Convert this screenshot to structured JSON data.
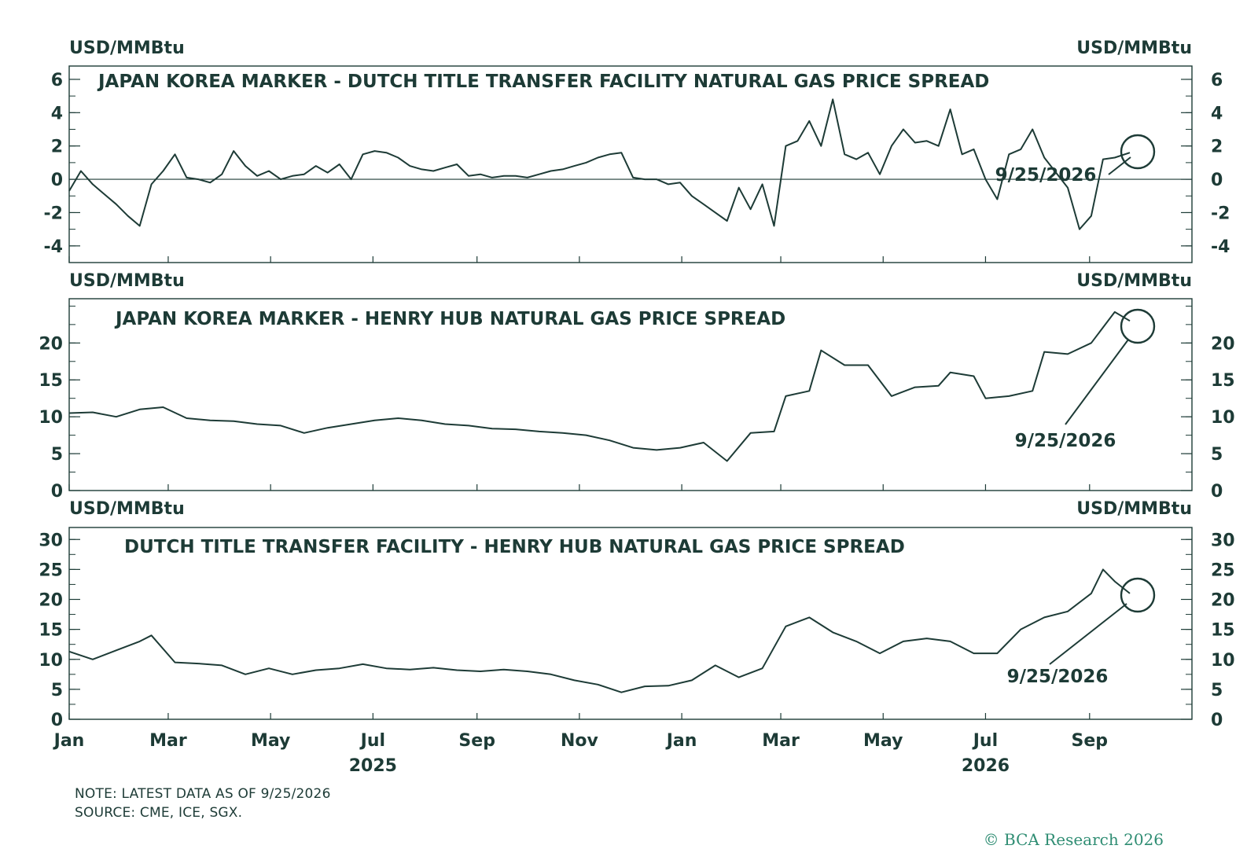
{
  "footer": {
    "note": "NOTE: LATEST DATA AS OF 9/25/2026",
    "source": "SOURCE: CME, ICE, SGX.",
    "copyright": "© BCA Research 2026"
  },
  "colors": {
    "line": "#1d3b36",
    "brand": "#2f8d73"
  },
  "x_axis": {
    "months": [
      {
        "label": "Jan",
        "date": "2025-01-01"
      },
      {
        "label": "Mar",
        "date": "2025-03-01"
      },
      {
        "label": "May",
        "date": "2025-05-01"
      },
      {
        "label": "Jul",
        "date": "2025-07-01"
      },
      {
        "label": "Sep",
        "date": "2025-09-01"
      },
      {
        "label": "Nov",
        "date": "2025-11-01"
      },
      {
        "label": "Jan",
        "date": "2026-01-01"
      },
      {
        "label": "Mar",
        "date": "2026-03-01"
      },
      {
        "label": "May",
        "date": "2026-05-01"
      },
      {
        "label": "Jul",
        "date": "2026-07-01"
      },
      {
        "label": "Sep",
        "date": "2026-09-01"
      }
    ],
    "years": [
      {
        "label": "2025",
        "date": "2025-07-01"
      },
      {
        "label": "2026",
        "date": "2026-07-01"
      }
    ],
    "range": [
      "2025-01-01",
      "2026-11-01"
    ]
  },
  "chart_data": [
    {
      "type": "line",
      "title": "JAPAN KOREA MARKER - DUTCH TITLE TRANSFER FACILITY NATURAL GAS PRICE SPREAD",
      "ylabel_left": "USD/MMBtu",
      "ylabel_right": "USD/MMBtu",
      "ylim": [
        -5,
        6.8
      ],
      "yticks": [
        -4,
        -2,
        0,
        2,
        4,
        6
      ],
      "zero_line": true,
      "annotation": {
        "text": "9/25/2026",
        "date": "2026-09-25",
        "value": 1.6
      },
      "series": [
        {
          "points": [
            [
              "2025-01-01",
              -0.7
            ],
            [
              "2025-01-08",
              0.5
            ],
            [
              "2025-01-15",
              -0.3
            ],
            [
              "2025-01-22",
              -0.9
            ],
            [
              "2025-01-29",
              -1.5
            ],
            [
              "2025-02-05",
              -2.2
            ],
            [
              "2025-02-12",
              -2.8
            ],
            [
              "2025-02-19",
              -0.3
            ],
            [
              "2025-02-26",
              0.5
            ],
            [
              "2025-03-05",
              1.5
            ],
            [
              "2025-03-12",
              0.1
            ],
            [
              "2025-03-19",
              0.0
            ],
            [
              "2025-03-26",
              -0.2
            ],
            [
              "2025-04-02",
              0.3
            ],
            [
              "2025-04-09",
              1.7
            ],
            [
              "2025-04-16",
              0.8
            ],
            [
              "2025-04-23",
              0.2
            ],
            [
              "2025-04-30",
              0.5
            ],
            [
              "2025-05-07",
              0.0
            ],
            [
              "2025-05-14",
              0.2
            ],
            [
              "2025-05-21",
              0.3
            ],
            [
              "2025-05-28",
              0.8
            ],
            [
              "2025-06-04",
              0.4
            ],
            [
              "2025-06-11",
              0.9
            ],
            [
              "2025-06-18",
              0.0
            ],
            [
              "2025-06-25",
              1.5
            ],
            [
              "2025-07-02",
              1.7
            ],
            [
              "2025-07-09",
              1.6
            ],
            [
              "2025-07-16",
              1.3
            ],
            [
              "2025-07-23",
              0.8
            ],
            [
              "2025-07-30",
              0.6
            ],
            [
              "2025-08-06",
              0.5
            ],
            [
              "2025-08-13",
              0.7
            ],
            [
              "2025-08-20",
              0.9
            ],
            [
              "2025-08-27",
              0.2
            ],
            [
              "2025-09-03",
              0.3
            ],
            [
              "2025-09-10",
              0.1
            ],
            [
              "2025-09-17",
              0.2
            ],
            [
              "2025-09-24",
              0.2
            ],
            [
              "2025-10-01",
              0.1
            ],
            [
              "2025-10-08",
              0.3
            ],
            [
              "2025-10-15",
              0.5
            ],
            [
              "2025-10-22",
              0.6
            ],
            [
              "2025-10-29",
              0.8
            ],
            [
              "2025-11-05",
              1.0
            ],
            [
              "2025-11-12",
              1.3
            ],
            [
              "2025-11-19",
              1.5
            ],
            [
              "2025-11-26",
              1.6
            ],
            [
              "2025-12-03",
              0.1
            ],
            [
              "2025-12-10",
              0.0
            ],
            [
              "2025-12-17",
              0.0
            ],
            [
              "2025-12-24",
              -0.3
            ],
            [
              "2025-12-31",
              -0.2
            ],
            [
              "2026-01-07",
              -1.0
            ],
            [
              "2026-01-14",
              -1.5
            ],
            [
              "2026-01-21",
              -2.0
            ],
            [
              "2026-01-28",
              -2.5
            ],
            [
              "2026-02-04",
              -0.5
            ],
            [
              "2026-02-11",
              -1.8
            ],
            [
              "2026-02-18",
              -0.3
            ],
            [
              "2026-02-25",
              -2.8
            ],
            [
              "2026-03-04",
              2.0
            ],
            [
              "2026-03-11",
              2.3
            ],
            [
              "2026-03-18",
              3.5
            ],
            [
              "2026-03-25",
              2.0
            ],
            [
              "2026-04-01",
              4.8
            ],
            [
              "2026-04-08",
              1.5
            ],
            [
              "2026-04-15",
              1.2
            ],
            [
              "2026-04-22",
              1.6
            ],
            [
              "2026-04-29",
              0.3
            ],
            [
              "2026-05-06",
              2.0
            ],
            [
              "2026-05-13",
              3.0
            ],
            [
              "2026-05-20",
              2.2
            ],
            [
              "2026-05-27",
              2.3
            ],
            [
              "2026-06-03",
              2.0
            ],
            [
              "2026-06-10",
              4.2
            ],
            [
              "2026-06-17",
              1.5
            ],
            [
              "2026-06-24",
              1.8
            ],
            [
              "2026-07-01",
              0.0
            ],
            [
              "2026-07-08",
              -1.2
            ],
            [
              "2026-07-15",
              1.5
            ],
            [
              "2026-07-22",
              1.8
            ],
            [
              "2026-07-29",
              3.0
            ],
            [
              "2026-08-05",
              1.3
            ],
            [
              "2026-08-12",
              0.4
            ],
            [
              "2026-08-19",
              -0.5
            ],
            [
              "2026-08-26",
              -3.0
            ],
            [
              "2026-09-02",
              -2.2
            ],
            [
              "2026-09-09",
              1.2
            ],
            [
              "2026-09-16",
              1.3
            ],
            [
              "2026-09-25",
              1.6
            ]
          ]
        }
      ]
    },
    {
      "type": "line",
      "title": "JAPAN KOREA MARKER - HENRY HUB NATURAL GAS PRICE SPREAD",
      "ylabel_left": "USD/MMBtu",
      "ylabel_right": "USD/MMBtu",
      "ylim": [
        0,
        26
      ],
      "yticks": [
        0,
        5,
        10,
        15,
        20
      ],
      "annotation": {
        "text": "9/25/2026",
        "date": "2026-09-25",
        "value": 23
      },
      "series": [
        {
          "points": [
            [
              "2025-01-01",
              10.5
            ],
            [
              "2025-01-15",
              10.6
            ],
            [
              "2025-01-29",
              10.0
            ],
            [
              "2025-02-12",
              11.0
            ],
            [
              "2025-02-26",
              11.3
            ],
            [
              "2025-03-12",
              9.8
            ],
            [
              "2025-03-26",
              9.5
            ],
            [
              "2025-04-09",
              9.4
            ],
            [
              "2025-04-23",
              9.0
            ],
            [
              "2025-05-07",
              8.8
            ],
            [
              "2025-05-21",
              7.8
            ],
            [
              "2025-06-04",
              8.5
            ],
            [
              "2025-06-18",
              9.0
            ],
            [
              "2025-07-02",
              9.5
            ],
            [
              "2025-07-16",
              9.8
            ],
            [
              "2025-07-30",
              9.5
            ],
            [
              "2025-08-13",
              9.0
            ],
            [
              "2025-08-27",
              8.8
            ],
            [
              "2025-09-10",
              8.4
            ],
            [
              "2025-09-24",
              8.3
            ],
            [
              "2025-10-08",
              8.0
            ],
            [
              "2025-10-22",
              7.8
            ],
            [
              "2025-11-05",
              7.5
            ],
            [
              "2025-11-19",
              6.8
            ],
            [
              "2025-12-03",
              5.8
            ],
            [
              "2025-12-17",
              5.5
            ],
            [
              "2025-12-31",
              5.8
            ],
            [
              "2026-01-14",
              6.5
            ],
            [
              "2026-01-28",
              4.0
            ],
            [
              "2026-02-11",
              7.8
            ],
            [
              "2026-02-25",
              8.0
            ],
            [
              "2026-03-04",
              12.8
            ],
            [
              "2026-03-18",
              13.5
            ],
            [
              "2026-03-25",
              19.0
            ],
            [
              "2026-04-08",
              17.0
            ],
            [
              "2026-04-22",
              17.0
            ],
            [
              "2026-05-06",
              12.8
            ],
            [
              "2026-05-20",
              14.0
            ],
            [
              "2026-06-03",
              14.2
            ],
            [
              "2026-06-10",
              16.0
            ],
            [
              "2026-06-24",
              15.5
            ],
            [
              "2026-07-01",
              12.5
            ],
            [
              "2026-07-15",
              12.8
            ],
            [
              "2026-07-29",
              13.5
            ],
            [
              "2026-08-05",
              18.8
            ],
            [
              "2026-08-19",
              18.5
            ],
            [
              "2026-09-02",
              20.0
            ],
            [
              "2026-09-16",
              24.2
            ],
            [
              "2026-09-25",
              23.0
            ]
          ]
        }
      ]
    },
    {
      "type": "line",
      "title": "DUTCH TITLE TRANSFER FACILITY - HENRY HUB NATURAL GAS PRICE SPREAD",
      "ylabel_left": "USD/MMBtu",
      "ylabel_right": "USD/MMBtu",
      "ylim": [
        0,
        32
      ],
      "yticks": [
        0,
        5,
        10,
        15,
        20,
        25,
        30
      ],
      "annotation": {
        "text": "9/25/2026",
        "date": "2026-09-25",
        "value": 21
      },
      "series": [
        {
          "points": [
            [
              "2025-01-01",
              11.3
            ],
            [
              "2025-01-15",
              10.0
            ],
            [
              "2025-01-29",
              11.5
            ],
            [
              "2025-02-12",
              13.0
            ],
            [
              "2025-02-19",
              14.0
            ],
            [
              "2025-03-05",
              9.5
            ],
            [
              "2025-03-19",
              9.3
            ],
            [
              "2025-04-02",
              9.0
            ],
            [
              "2025-04-16",
              7.5
            ],
            [
              "2025-04-30",
              8.5
            ],
            [
              "2025-05-14",
              7.5
            ],
            [
              "2025-05-28",
              8.2
            ],
            [
              "2025-06-11",
              8.5
            ],
            [
              "2025-06-25",
              9.2
            ],
            [
              "2025-07-09",
              8.5
            ],
            [
              "2025-07-23",
              8.3
            ],
            [
              "2025-08-06",
              8.6
            ],
            [
              "2025-08-20",
              8.2
            ],
            [
              "2025-09-03",
              8.0
            ],
            [
              "2025-09-17",
              8.3
            ],
            [
              "2025-10-01",
              8.0
            ],
            [
              "2025-10-15",
              7.5
            ],
            [
              "2025-10-29",
              6.5
            ],
            [
              "2025-11-12",
              5.8
            ],
            [
              "2025-11-26",
              4.5
            ],
            [
              "2025-12-10",
              5.5
            ],
            [
              "2025-12-24",
              5.6
            ],
            [
              "2026-01-07",
              6.5
            ],
            [
              "2026-01-21",
              9.0
            ],
            [
              "2026-02-04",
              7.0
            ],
            [
              "2026-02-18",
              8.5
            ],
            [
              "2026-03-04",
              15.5
            ],
            [
              "2026-03-18",
              17.0
            ],
            [
              "2026-04-01",
              14.5
            ],
            [
              "2026-04-15",
              13.0
            ],
            [
              "2026-04-29",
              11.0
            ],
            [
              "2026-05-13",
              13.0
            ],
            [
              "2026-05-27",
              13.5
            ],
            [
              "2026-06-10",
              13.0
            ],
            [
              "2026-06-24",
              11.0
            ],
            [
              "2026-07-08",
              11.0
            ],
            [
              "2026-07-22",
              15.0
            ],
            [
              "2026-08-05",
              17.0
            ],
            [
              "2026-08-19",
              18.0
            ],
            [
              "2026-09-02",
              21.0
            ],
            [
              "2026-09-09",
              25.0
            ],
            [
              "2026-09-16",
              23.0
            ],
            [
              "2026-09-25",
              21.0
            ]
          ]
        }
      ]
    }
  ]
}
